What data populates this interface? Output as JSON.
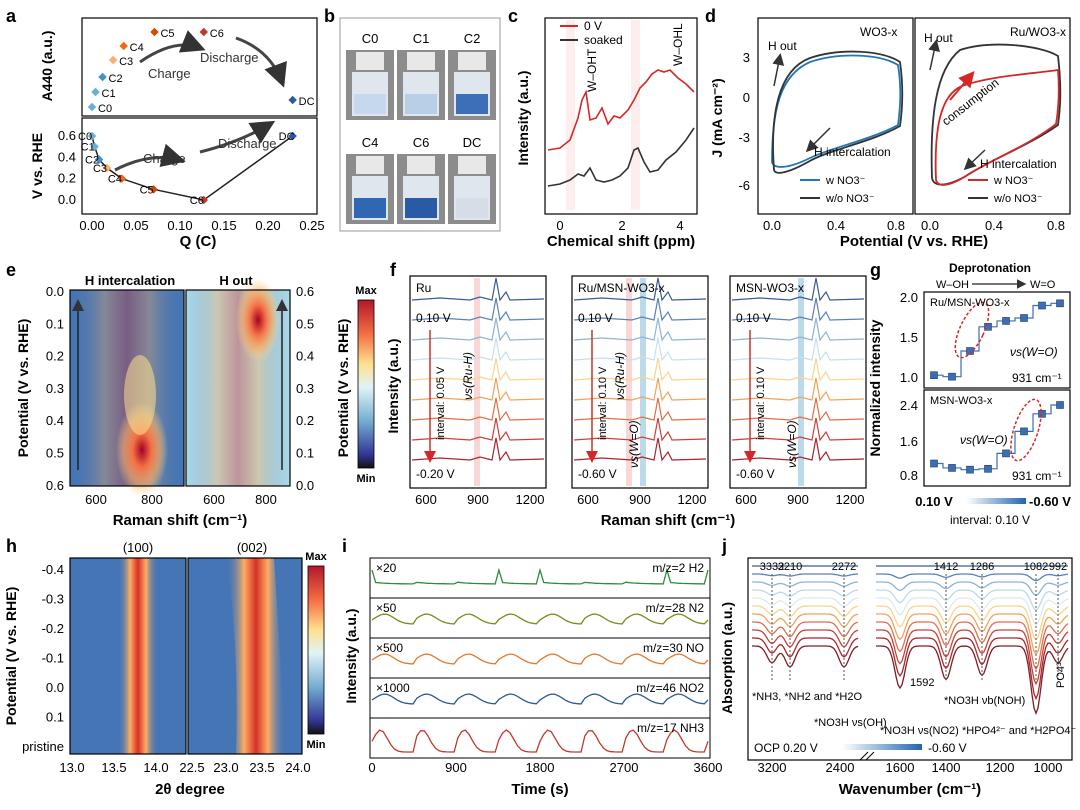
{
  "figure_title": "Multi-panel characterization figure",
  "panels": {
    "a": {
      "letter": "a",
      "top_ylabel": "A440 (a.u.)",
      "bottom_ylabel": "V vs. RHE",
      "xlabel": "Q (C)",
      "arrow_charge": "Charge",
      "arrow_discharge": "Discharge",
      "xticks": [
        "0.00",
        "0.05",
        "0.10",
        "0.15",
        "0.20",
        "0.25"
      ],
      "yticks_bottom": [
        "0.0",
        "0.2",
        "0.4",
        "0.6"
      ]
    },
    "b": {
      "letter": "b",
      "vial_labels": [
        "C0",
        "C1",
        "C2",
        "C4",
        "C6",
        "DC"
      ]
    },
    "c": {
      "letter": "c",
      "ylabel": "Intensity (a.u.)",
      "xlabel": "Chemical shift (ppm)",
      "legend": [
        "0 V",
        "soaked"
      ],
      "ann_T": "W–OHT",
      "ann_L": "W–OHL",
      "xticks": [
        "0",
        "2",
        "4"
      ]
    },
    "d": {
      "letter": "d",
      "ylabel": "J (mA cm⁻²)",
      "xlabel": "Potential (V vs. RHE)",
      "left_title": "WO3-x",
      "right_title": "Ru/WO3-x",
      "h_out": "H out",
      "h_intercalation": "H intercalation",
      "consumption": "consumption",
      "legend": [
        "w NO3⁻",
        "w/o NO3⁻"
      ],
      "yticks": [
        "3",
        "0",
        "-3",
        "-6"
      ],
      "xticks": [
        "0.0",
        "0.4",
        "0.8"
      ]
    },
    "e": {
      "letter": "e",
      "left_title": "H intercalation",
      "right_title": "H out",
      "ylabel_left": "Potential (V vs. RHE)",
      "ylabel_right": "Potential (V vs. RHE)",
      "xlabel": "Raman shift (cm⁻¹)",
      "colorbar_max": "Max",
      "colorbar_min": "Min",
      "yticks_left": [
        "0.0",
        "0.1",
        "0.2",
        "0.3",
        "0.4",
        "0.5",
        "0.6"
      ],
      "yticks_right": [
        "0.6",
        "0.5",
        "0.4",
        "0.3",
        "0.2",
        "0.1",
        "0.0"
      ],
      "xticks": [
        "600",
        "800"
      ]
    },
    "f": {
      "letter": "f",
      "ylabel": "Intensity (a.u.)",
      "xlabel": "Raman shift (cm⁻¹)",
      "sub_titles": [
        "Ru",
        "Ru/MSN-WO3-x",
        "MSN-WO3-x"
      ],
      "top_potentials": [
        "0.10 V",
        "0.10 V",
        "0.10 V"
      ],
      "bottom_potentials": [
        "-0.20 V",
        "-0.60 V",
        "-0.60 V"
      ],
      "intervals": [
        "interval: 0.05 V",
        "interval: 0.10 V",
        "interval: 0.10 V"
      ],
      "ann_ru_h": "νs(Ru-H)",
      "ann_w_o": "νs(W=O)",
      "xticks": [
        "600",
        "900",
        "1200"
      ]
    },
    "g": {
      "letter": "g",
      "title": "Deprotonation",
      "from": "W–OH",
      "to": "W=O",
      "ylabel": "Normalized intensity",
      "top_label": "Ru/MSN-WO3-x",
      "bottom_label": "MSN-WO3-x",
      "ann": "νs(W=O)",
      "wavenumber": "931 cm⁻¹",
      "x_start": "0.10 V",
      "x_end": "-0.60 V",
      "interval": "interval: 0.10 V",
      "yticks_top": [
        "2.0",
        "1.5",
        "1.0"
      ],
      "yticks_bottom": [
        "2.4",
        "1.6",
        "0.8"
      ]
    },
    "h": {
      "letter": "h",
      "ylabel": "Potential (V vs. RHE)",
      "xlabel": "2θ degree",
      "peak_left": "(100)",
      "peak_right": "(002)",
      "yticks": [
        "-0.4",
        "-0.3",
        "-0.2",
        "-0.1",
        "0.0",
        "0.1",
        "pristine"
      ],
      "xticks_left": [
        "13.0",
        "13.5",
        "14.0"
      ],
      "xticks_right": [
        "22.5",
        "23.0",
        "23.5",
        "24.0"
      ],
      "colorbar_max": "Max",
      "colorbar_min": "Min"
    },
    "i": {
      "letter": "i",
      "ylabel": "Intensity (a.u.)",
      "xlabel": "Time (s)",
      "multipliers": [
        "×20",
        "×50",
        "×500",
        "×1000",
        ""
      ],
      "labels": [
        "m/z=2 H2",
        "m/z=28 N2",
        "m/z=30 NO",
        "m/z=46 NO2",
        "m/z=17 NH3"
      ],
      "xticks": [
        "0",
        "900",
        "1800",
        "2700",
        "3600"
      ]
    },
    "j": {
      "letter": "j",
      "ylabel": "Absorption (a.u.)",
      "xlabel": "Wavenumber (cm⁻¹)",
      "top_peaks": [
        "3332",
        "3210",
        "2272",
        "1412",
        "1286",
        "1082",
        "992"
      ],
      "ann_nh": "*NH3, *NH2 and *H2O",
      "ann_noh_oh": "*NO3H νs(OH)",
      "ann_1592": "1592",
      "ann_no2": "*NO3H νs(NO2)",
      "ann_noh_b": "*NO3H νb(NOH)",
      "ann_hpo": "*HPO4²⁻ and *H2PO4⁻",
      "ann_po": "PO4³⁻",
      "legend_left": "OCP  0.20 V",
      "legend_right": "-0.60 V",
      "xticks": [
        "3200",
        "2400",
        "1600",
        "1400",
        "1200",
        "1000"
      ]
    }
  },
  "chart_data": [
    {
      "panel": "a-top",
      "type": "scatter",
      "title": "",
      "ylabel": "A440 (a.u.)",
      "points": [
        {
          "label": "C0",
          "q": 0.0,
          "a": 0.05
        },
        {
          "label": "C1",
          "q": 0.004,
          "a": 0.2
        },
        {
          "label": "C2",
          "q": 0.012,
          "a": 0.35
        },
        {
          "label": "C3",
          "q": 0.024,
          "a": 0.52
        },
        {
          "label": "C4",
          "q": 0.036,
          "a": 0.66
        },
        {
          "label": "C5",
          "q": 0.071,
          "a": 0.8
        },
        {
          "label": "C6",
          "q": 0.127,
          "a": 0.8
        },
        {
          "label": "DC",
          "q": 0.228,
          "a": 0.12
        }
      ]
    },
    {
      "panel": "a-bottom",
      "type": "line",
      "xlabel": "Q (C)",
      "ylabel": "V vs. RHE",
      "xlim": [
        -0.02,
        0.25
      ],
      "ylim": [
        -0.08,
        0.68
      ],
      "points": [
        {
          "label": "C0",
          "q": 0.0,
          "v": 0.6
        },
        {
          "label": "C1",
          "q": 0.003,
          "v": 0.5
        },
        {
          "label": "C2",
          "q": 0.008,
          "v": 0.38
        },
        {
          "label": "C3",
          "q": 0.017,
          "v": 0.3
        },
        {
          "label": "C4",
          "q": 0.034,
          "v": 0.2
        },
        {
          "label": "C5",
          "q": 0.07,
          "v": 0.1
        },
        {
          "label": "C6",
          "q": 0.127,
          "v": 0.0
        },
        {
          "label": "DC",
          "q": 0.228,
          "v": 0.6
        }
      ]
    },
    {
      "panel": "g-top",
      "type": "line",
      "ylabel": "Normalized intensity",
      "ylim": [
        0.9,
        2.1
      ],
      "series": [
        {
          "name": "Ru/MSN-WO3-x",
          "values": [
            1.02,
            1.0,
            1.35,
            1.68,
            1.76,
            1.8,
            1.97,
            2.0
          ]
        }
      ]
    },
    {
      "panel": "g-bottom",
      "type": "line",
      "ylabel": "Normalized intensity",
      "ylim": [
        0.6,
        2.6
      ],
      "series": [
        {
          "name": "MSN-WO3-x",
          "values": [
            1.02,
            0.92,
            0.88,
            0.9,
            1.25,
            1.75,
            2.15,
            2.35
          ]
        }
      ]
    }
  ]
}
